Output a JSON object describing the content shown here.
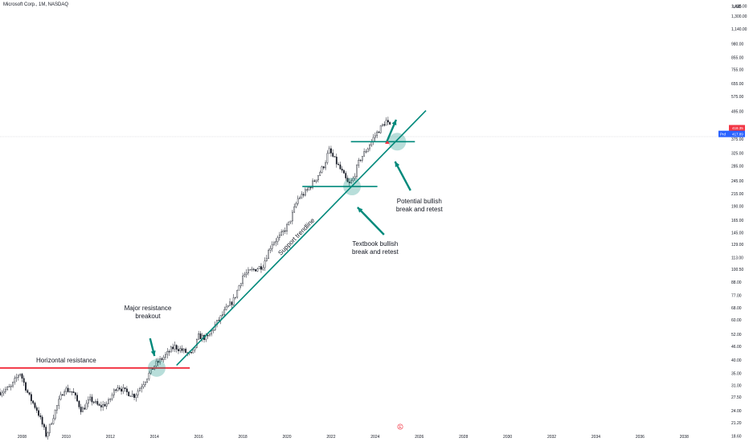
{
  "header": {
    "title": "Microsoft Corp., 1M, NASDAQ",
    "currency": "USD"
  },
  "colors": {
    "up": "#26a69a",
    "down": "#ef5350",
    "candle": "#131722",
    "trend": "#00897b",
    "resistance": "#f23645",
    "arrow": "#00897b",
    "price_tag": "#f23645",
    "prev_tag": "#2962ff"
  },
  "chart_data": {
    "type": "candlestick",
    "title": "Microsoft Corp., 1M, NASDAQ",
    "y_scale": "log",
    "y_ticks": [
      1435,
      1300,
      1140,
      980,
      855,
      755,
      655,
      575,
      495,
      425,
      375,
      325,
      285,
      245,
      215,
      190,
      165,
      145,
      129,
      113,
      100.5,
      88,
      77,
      68,
      60,
      52,
      46,
      40,
      35,
      31,
      27.5,
      24,
      21.2,
      18.6
    ],
    "y_tick_labels": [
      "1,435.00",
      "1,300.00",
      "1,140.00",
      "980.00",
      "855.00",
      "755.00",
      "655.00",
      "575.00",
      "495.00",
      "425.00",
      "375.00",
      "325.00",
      "285.00",
      "245.00",
      "215.00",
      "190.00",
      "165.00",
      "145.00",
      "129.00",
      "113.00",
      "100.50",
      "88.00",
      "77.00",
      "68.00",
      "60.00",
      "52.00",
      "46.00",
      "40.00",
      "35.00",
      "31.00",
      "27.50",
      "24.00",
      "21.20",
      "18.60"
    ],
    "x_ticks": [
      "2008",
      "2010",
      "2012",
      "2014",
      "2016",
      "2018",
      "2020",
      "2022",
      "2024",
      "2026",
      "2028",
      "2030",
      "2032",
      "2034",
      "2036",
      "2038"
    ],
    "last_price": {
      "label": "418.35",
      "value": 418.35
    },
    "prev_close": {
      "label": "Prd",
      "value_label": "417.89",
      "value": 417.89
    },
    "series": [
      {
        "points": [
          [
            2007.0,
            29
          ],
          [
            2007.5,
            30.5
          ],
          [
            2007.9,
            35.5
          ],
          [
            2008.3,
            28
          ],
          [
            2008.7,
            24
          ],
          [
            2009.1,
            18.6
          ],
          [
            2009.5,
            24
          ],
          [
            2009.9,
            30
          ],
          [
            2010.3,
            29
          ],
          [
            2010.7,
            24
          ],
          [
            2011.1,
            27
          ],
          [
            2011.5,
            25
          ],
          [
            2011.9,
            26
          ],
          [
            2012.3,
            31
          ],
          [
            2012.7,
            29
          ],
          [
            2013.1,
            28
          ],
          [
            2013.6,
            33
          ],
          [
            2014.0,
            38
          ],
          [
            2014.5,
            42
          ],
          [
            2014.9,
            46
          ],
          [
            2015.3,
            44
          ],
          [
            2015.7,
            42
          ],
          [
            2016.0,
            51
          ],
          [
            2016.4,
            50
          ],
          [
            2016.8,
            58
          ],
          [
            2017.2,
            66
          ],
          [
            2017.6,
            74
          ],
          [
            2018.0,
            94
          ],
          [
            2018.4,
            99
          ],
          [
            2018.9,
            104
          ],
          [
            2019.3,
            130
          ],
          [
            2019.7,
            140
          ],
          [
            2020.1,
            160
          ],
          [
            2020.5,
            205
          ],
          [
            2020.9,
            222
          ],
          [
            2021.3,
            250
          ],
          [
            2021.7,
            290
          ],
          [
            2021.9,
            335
          ],
          [
            2022.2,
            300
          ],
          [
            2022.5,
            268
          ],
          [
            2022.8,
            235
          ],
          [
            2023.0,
            250
          ],
          [
            2023.3,
            305
          ],
          [
            2023.6,
            335
          ],
          [
            2023.9,
            376
          ],
          [
            2024.2,
            415
          ],
          [
            2024.5,
            450
          ],
          [
            2024.7,
            418.35
          ]
        ]
      }
    ],
    "annotations": {
      "horizontal_resistance_label": "Horizontal resistance",
      "major_breakout_line1": "Major resistance",
      "major_breakout_line2": "breakout",
      "support_trendline_label": "Support trendline",
      "textbook_line1": "Textbook bullish",
      "textbook_line2": "break and retest",
      "potential_line1": "Potential bullish",
      "potential_line2": "break and retest"
    },
    "lines": {
      "horizontal_resistance": {
        "price": 37,
        "x_start": 2006.9,
        "x_end": 2015.6
      },
      "resistance_2021": {
        "price": 232,
        "x_start": 2020.7,
        "x_end": 2024.1
      },
      "resistance_2024": {
        "price": 365,
        "x_start": 2022.9,
        "x_end": 2025.8
      },
      "support_trendline": {
        "x1": 2015.0,
        "p1": 38,
        "x2": 2026.3,
        "p2": 500
      }
    },
    "x_range": [
      2007.0,
      2039.7
    ],
    "y_range": [
      17.5,
      1530
    ]
  },
  "badge": "E"
}
